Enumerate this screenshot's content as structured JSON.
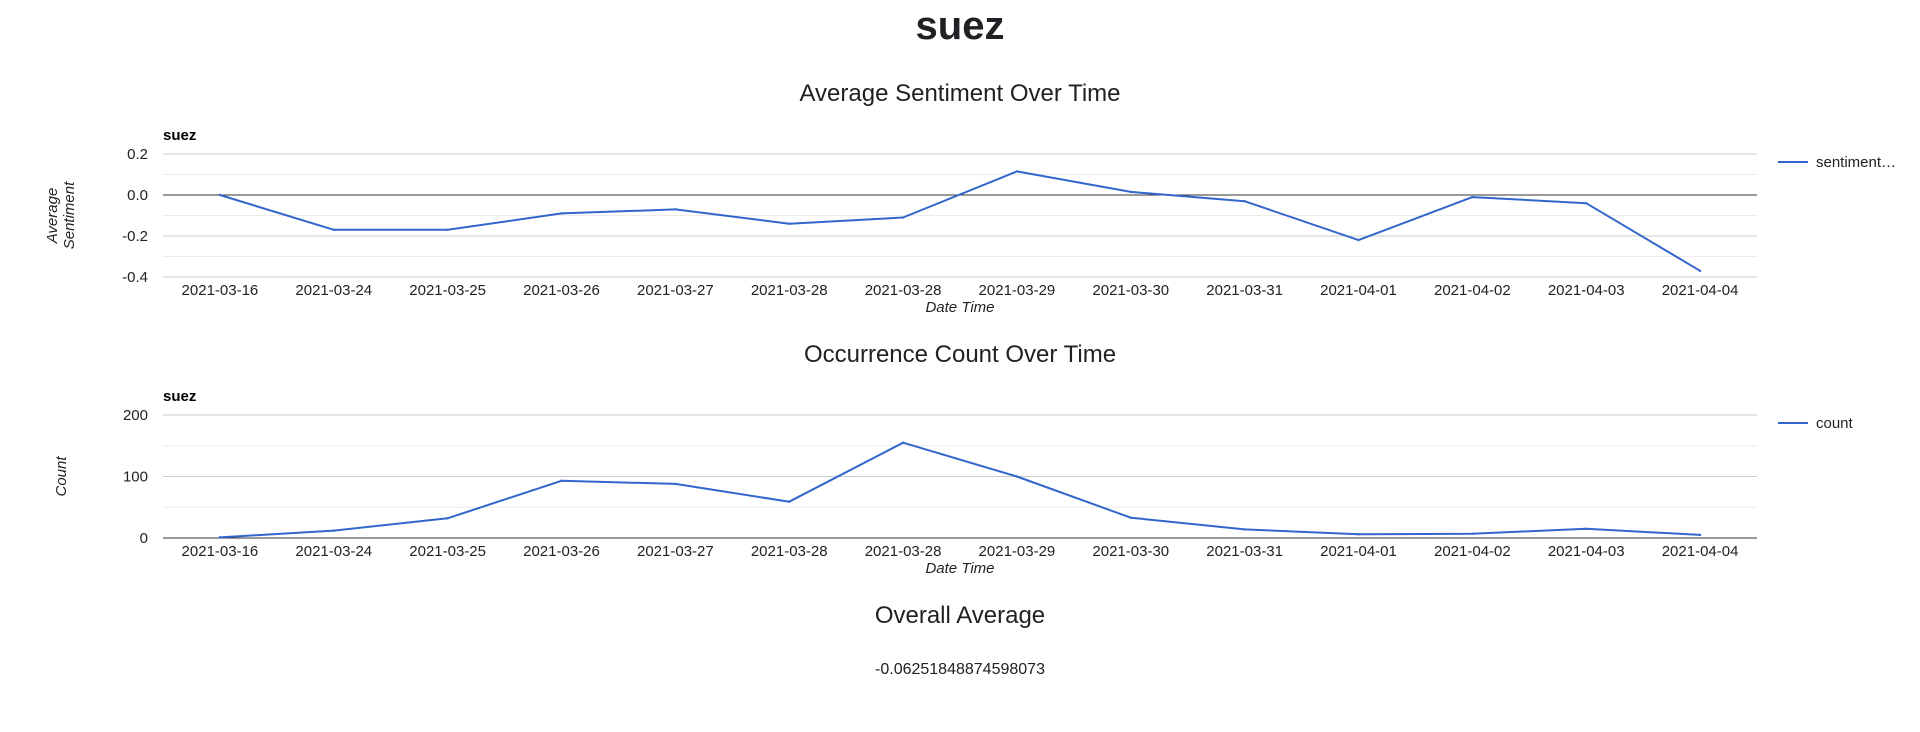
{
  "page": {
    "title": "suez"
  },
  "sections": {
    "sentiment_title": "Average Sentiment Over Time",
    "count_title": "Occurrence Count Over Time",
    "overall_title": "Overall Average",
    "overall_value": "-0.06251848874598073"
  },
  "colors": {
    "series": "#3366cc",
    "grid": "#e0e0e0",
    "baseline": "#333333",
    "text": "#202124"
  },
  "chart_data": [
    {
      "type": "line",
      "subtitle": "suez",
      "xlabel": "Date Time",
      "ylabel": "Average Sentiment",
      "ylim": [
        -0.4,
        0.2
      ],
      "yticks": [
        0.2,
        0.0,
        -0.2,
        -0.4
      ],
      "ytick_labels": [
        "0.2",
        "0.0",
        "-0.2",
        "-0.4"
      ],
      "grid": true,
      "legend": "right",
      "categories": [
        "2021-03-16",
        "2021-03-24",
        "2021-03-25",
        "2021-03-26",
        "2021-03-27",
        "2021-03-28",
        "2021-03-28",
        "2021-03-29",
        "2021-03-30",
        "2021-03-31",
        "2021-04-01",
        "2021-04-02",
        "2021-04-03",
        "2021-04-04"
      ],
      "series": [
        {
          "name": "sentiment…",
          "values": [
            0.0,
            -0.17,
            -0.17,
            -0.09,
            -0.07,
            -0.14,
            -0.11,
            0.115,
            0.015,
            -0.03,
            -0.22,
            -0.01,
            -0.04,
            -0.37
          ]
        }
      ]
    },
    {
      "type": "line",
      "subtitle": "suez",
      "xlabel": "Date Time",
      "ylabel": "Count",
      "ylim": [
        0,
        200
      ],
      "yticks": [
        200,
        100,
        0
      ],
      "ytick_labels": [
        "200",
        "100",
        "0"
      ],
      "grid": true,
      "legend": "right",
      "categories": [
        "2021-03-16",
        "2021-03-24",
        "2021-03-25",
        "2021-03-26",
        "2021-03-27",
        "2021-03-28",
        "2021-03-28",
        "2021-03-29",
        "2021-03-30",
        "2021-03-31",
        "2021-04-01",
        "2021-04-02",
        "2021-04-03",
        "2021-04-04"
      ],
      "series": [
        {
          "name": "count",
          "values": [
            1,
            12,
            32,
            93,
            88,
            59,
            155,
            100,
            33,
            14,
            6,
            7,
            15,
            5
          ]
        }
      ]
    }
  ]
}
